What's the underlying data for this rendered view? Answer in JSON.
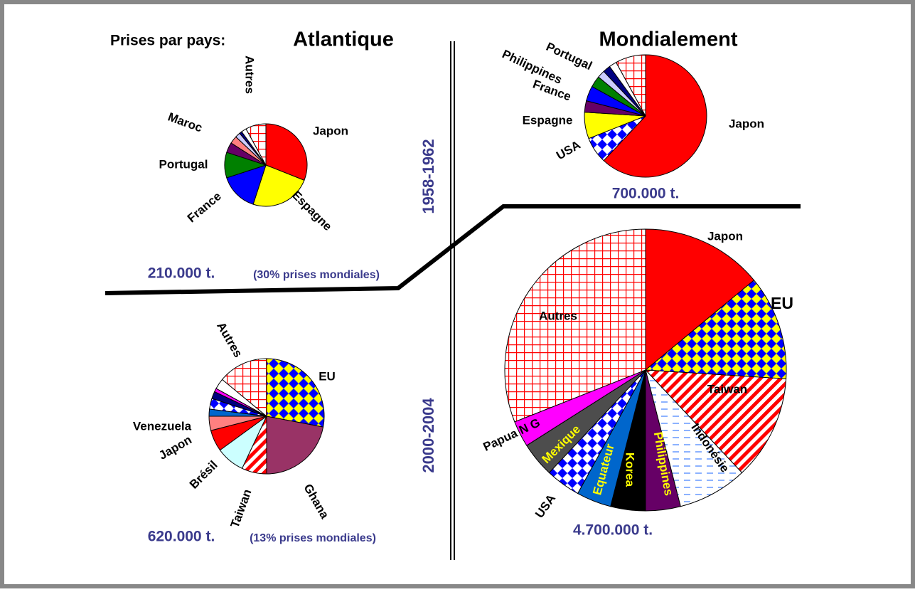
{
  "texts": {
    "heading": "Prises par pays:",
    "atlantic": "Atlantique",
    "world": "Mondialement",
    "period_1": "1958-1962",
    "period_2": "2000-2004"
  },
  "chart_data": [
    {
      "type": "pie",
      "total": "210.000 t.",
      "note": "(30% prises mondiales)",
      "categories": [
        "Japon",
        "Espagne",
        "France",
        "Portugal",
        "Maroc",
        null,
        null,
        null,
        null,
        "Autres"
      ],
      "values": [
        31,
        24,
        15,
        10,
        4,
        3,
        2,
        1,
        2,
        8
      ],
      "colors": [
        "#ff0000",
        "#ffff00",
        "#0000ff",
        "#008000",
        "#660066",
        "#ff8080",
        "#ccccff",
        "#000080",
        "#ffffff",
        "#ff0000"
      ],
      "patterns": [
        null,
        null,
        null,
        null,
        null,
        null,
        null,
        null,
        null,
        "grid"
      ]
    },
    {
      "type": "pie",
      "total": "700.000 t.",
      "categories": [
        "Japon",
        "USA",
        "Espagne",
        null,
        "France",
        null,
        "Philippines",
        "Portugal",
        null,
        null
      ],
      "values": [
        62,
        7,
        7,
        3,
        4,
        3,
        2,
        2,
        2,
        8
      ],
      "colors": [
        "#ff0000",
        "#0000ff",
        "#ffff00",
        "#660066",
        "#0000ff",
        "#008000",
        "#ccccff",
        "#000080",
        "#ffffff",
        "#ff0000"
      ],
      "patterns": [
        null,
        "check-white",
        null,
        null,
        null,
        null,
        null,
        null,
        null,
        "grid"
      ]
    },
    {
      "type": "pie",
      "total": "620.000 t.",
      "note": "(13% prises mondiales)",
      "categories": [
        "EU",
        "Ghana",
        "Taiwan",
        "Brésil",
        "Japon",
        "Venezuela",
        null,
        null,
        null,
        null,
        null,
        "Autres"
      ],
      "values": [
        28,
        22,
        7,
        8,
        6,
        4,
        2,
        3,
        2,
        1,
        3,
        14
      ],
      "colors": [
        "#0000ff",
        "#993366",
        "#ff0000",
        "#ccffff",
        "#ff0000",
        "#ff8080",
        "#0066cc",
        "#0000ff",
        "#000080",
        "#ff00ff",
        "#ffffff",
        "#ff0000"
      ],
      "patterns": [
        "check-yellow",
        null,
        "stripes",
        null,
        null,
        null,
        null,
        "check-white",
        null,
        null,
        null,
        "grid"
      ]
    },
    {
      "type": "pie",
      "total": "4.700.000 t.",
      "categories": [
        "Japon",
        "EU",
        "Taiwan",
        "Indonésie",
        "Philippines",
        "Korea",
        "Equateur",
        "USA",
        "Mexique",
        "Papua N G",
        "Autres"
      ],
      "values": [
        14,
        12,
        12,
        8,
        4,
        4,
        4,
        4,
        4,
        3,
        31
      ],
      "colors": [
        "#ff0000",
        "#0000ff",
        "#ff0000",
        "#99ccff",
        "#660066",
        "#000000",
        "#0066cc",
        "#0000ff",
        "#4d4d4d",
        "#ff00ff",
        "#ff0000"
      ],
      "patterns": [
        null,
        "check-yellow",
        "stripes",
        "dashes",
        null,
        null,
        null,
        "check-white",
        null,
        null,
        "grid"
      ],
      "label_colors": [
        "#000000",
        "#000000",
        "#000000",
        "#000000",
        "#ffff00",
        "#ffff00",
        "#ffff00",
        "#000000",
        "#ffff00",
        "#000000",
        "#000000"
      ]
    }
  ]
}
